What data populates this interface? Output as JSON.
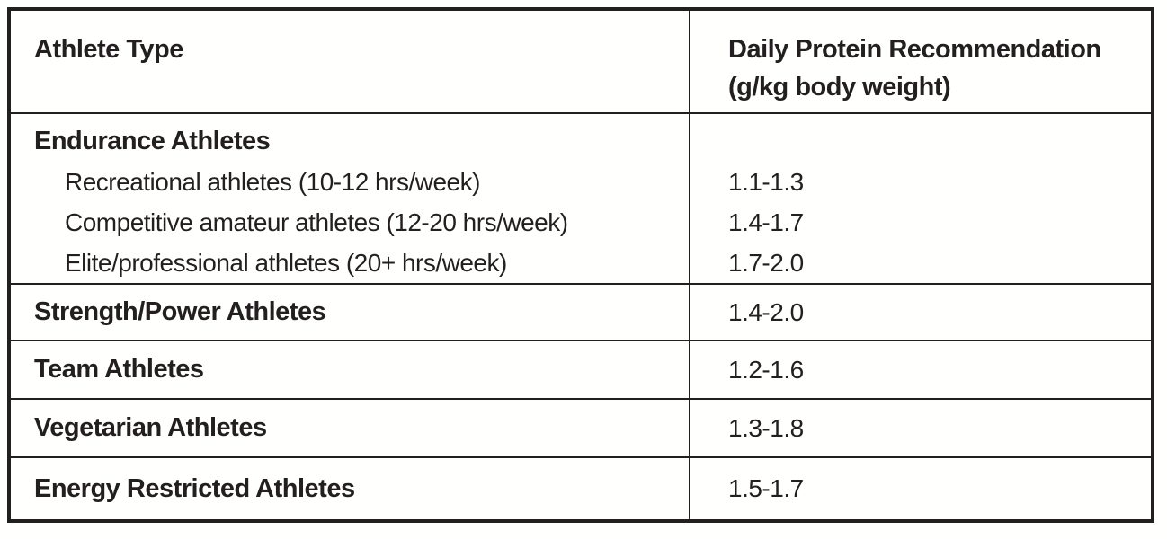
{
  "colors": {
    "text": "#231f20",
    "border": "#231f20",
    "background": "#fffffe"
  },
  "table": {
    "header": {
      "athlete_type": "Athlete Type",
      "recommendation_line1": "Daily Protein Recommendation",
      "recommendation_line2": "(g/kg body weight)"
    },
    "endurance": {
      "group_label": "Endurance Athletes",
      "sub_rows": [
        {
          "label": "Recreational athletes (10-12 hrs/week)",
          "value": "1.1-1.3"
        },
        {
          "label": "Competitive amateur athletes (12-20 hrs/week)",
          "value": "1.4-1.7"
        },
        {
          "label": "Elite/professional athletes (20+ hrs/week)",
          "value": "1.7-2.0"
        }
      ]
    },
    "rows": [
      {
        "label": "Strength/Power Athletes",
        "value": "1.4-2.0"
      },
      {
        "label": "Team Athletes",
        "value": "1.2-1.6"
      },
      {
        "label": "Vegetarian Athletes",
        "value": "1.3-1.8"
      },
      {
        "label": "Energy Restricted Athletes",
        "value": "1.5-1.7"
      }
    ]
  }
}
